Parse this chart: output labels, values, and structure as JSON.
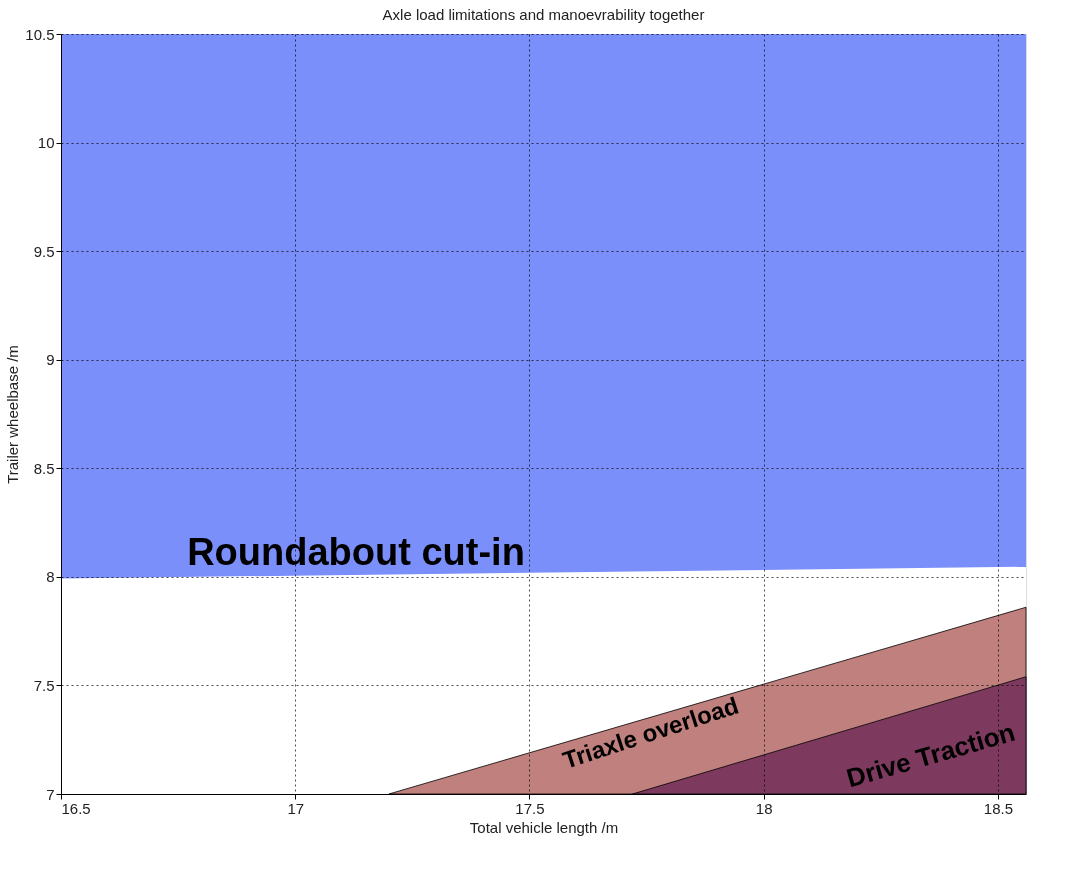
{
  "chart_data": {
    "type": "area",
    "title": "Axle load limitations and manoevrability together",
    "xlabel": "Total vehicle length /m",
    "ylabel": "Trailer wheelbase /m",
    "xlim": [
      16.5,
      18.56
    ],
    "ylim": [
      7,
      10.5
    ],
    "xticks": [
      16.5,
      17,
      17.5,
      18,
      18.5
    ],
    "yticks": [
      7,
      7.5,
      8,
      8.5,
      9,
      9.5,
      10,
      10.5
    ],
    "grid": true,
    "line_style": "solid",
    "series": [
      {
        "type": "line",
        "color": "#7b8ffb",
        "x": [
          16.5,
          18.56
        ],
        "values": [
          7.996,
          8.05
        ],
        "lower": [
          7.996,
          8.05
        ],
        "upper": [
          10.5,
          10.5
        ]
      },
      {
        "color": "#c0807e",
        "x": [
          17.2,
          18.56
        ],
        "values": [
          7,
          7.86
        ]
      },
      {
        "color": "#7d3a5e",
        "x": [
          17.72,
          18.56
        ],
        "values": [
          7,
          7.54
        ]
      }
    ],
    "annotations": [
      "Roundabout cut-in",
      "Triaxle overload",
      "Drive Traction"
    ]
  }
}
